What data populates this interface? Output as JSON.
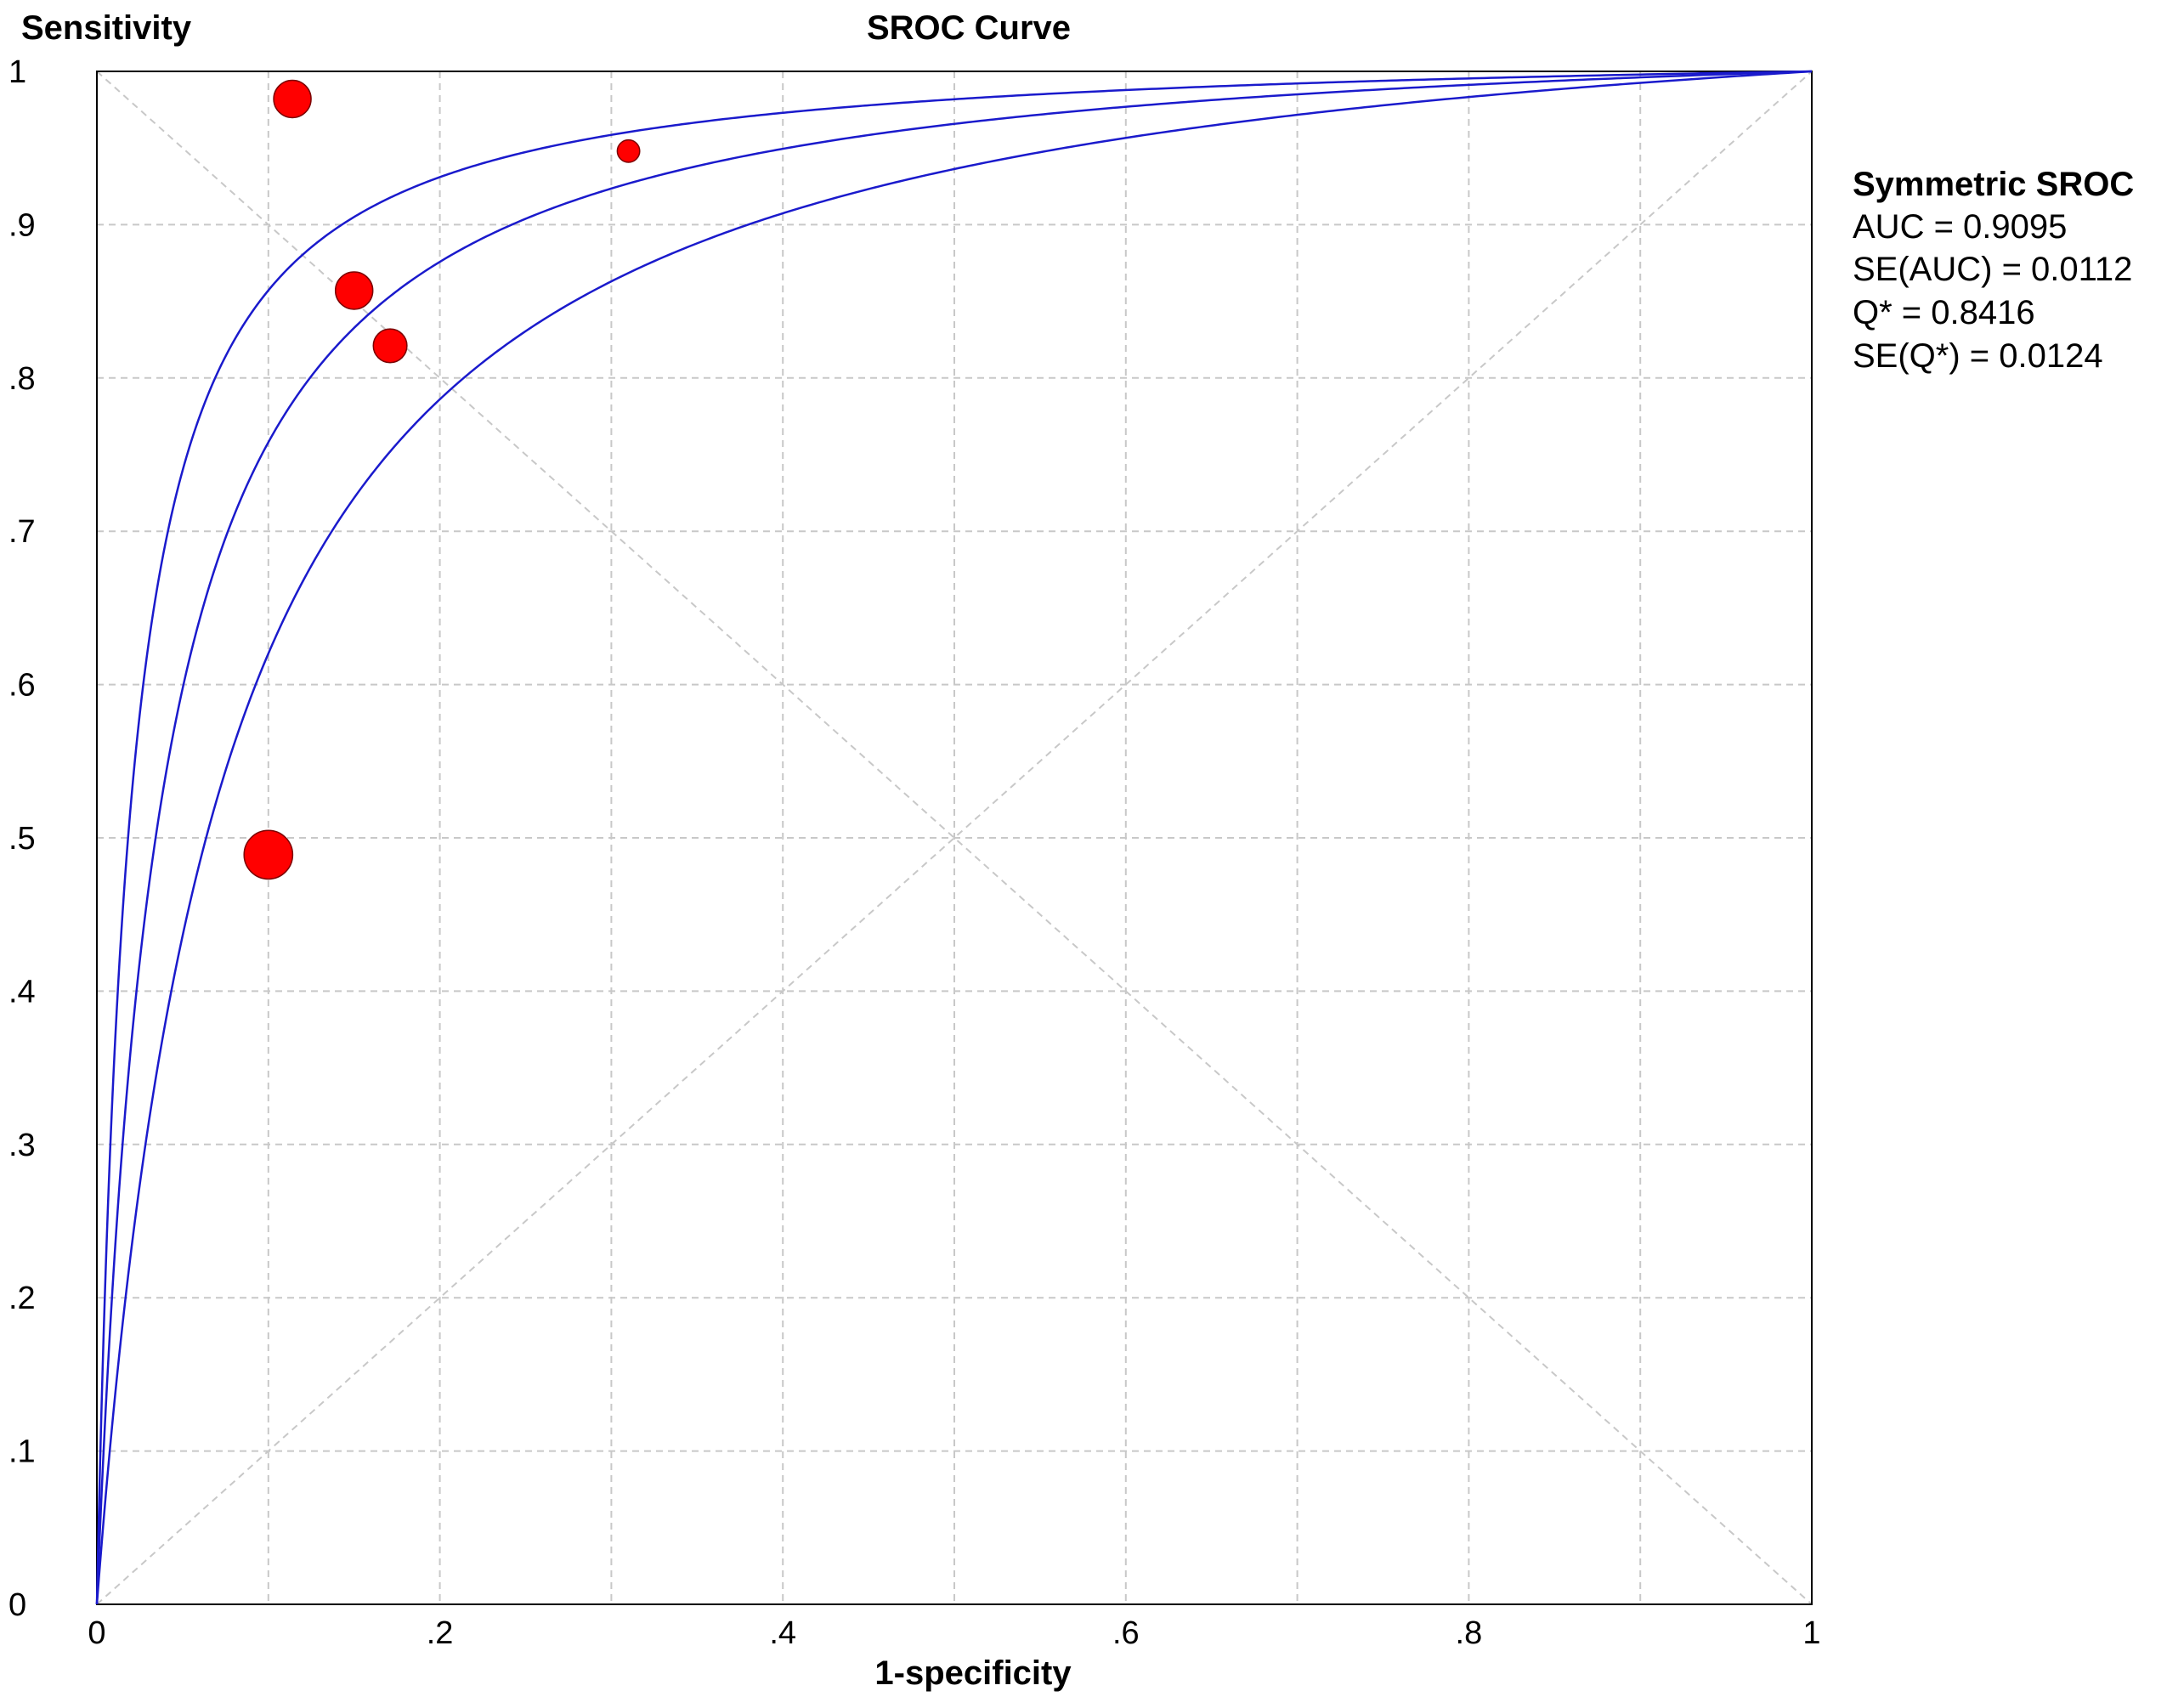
{
  "chart_data": {
    "type": "scatter",
    "title": "SROC Curve",
    "xlabel": "1-specificity",
    "ylabel": "Sensitivity",
    "xlim": [
      0,
      1
    ],
    "ylim": [
      0,
      1
    ],
    "grid": true,
    "x_ticks": [
      "0",
      ".2",
      ".4",
      ".6",
      ".8",
      "1"
    ],
    "x_tick_values": [
      0,
      0.2,
      0.4,
      0.6,
      0.8,
      1
    ],
    "y_ticks": [
      "0",
      ".1",
      ".2",
      ".3",
      ".4",
      ".5",
      ".6",
      ".7",
      ".8",
      ".9",
      "1"
    ],
    "y_tick_values": [
      0,
      0.1,
      0.2,
      0.3,
      0.4,
      0.5,
      0.6,
      0.7,
      0.8,
      0.9,
      1
    ],
    "points": [
      {
        "x": 0.114,
        "y": 0.982,
        "weight": 1.0
      },
      {
        "x": 0.15,
        "y": 0.857,
        "weight": 1.0
      },
      {
        "x": 0.171,
        "y": 0.821,
        "weight": 0.9
      },
      {
        "x": 0.1,
        "y": 0.489,
        "weight": 1.3
      },
      {
        "x": 0.31,
        "y": 0.948,
        "weight": 0.6
      }
    ],
    "curves": [
      {
        "dor": 54.0
      },
      {
        "dor": 28.2
      },
      {
        "dor": 14.7
      }
    ],
    "reference_lines": [
      "diagonal",
      "anti-diagonal"
    ],
    "colors": {
      "curve": "#1a1acc",
      "point": "#ff0000",
      "grid": "#c8c8c8"
    }
  },
  "annotation": {
    "title": "Symmetric SROC",
    "lines": [
      "AUC = 0.9095",
      "SE(AUC) = 0.0112",
      "Q* = 0.8416",
      "SE(Q*) = 0.0124"
    ]
  }
}
